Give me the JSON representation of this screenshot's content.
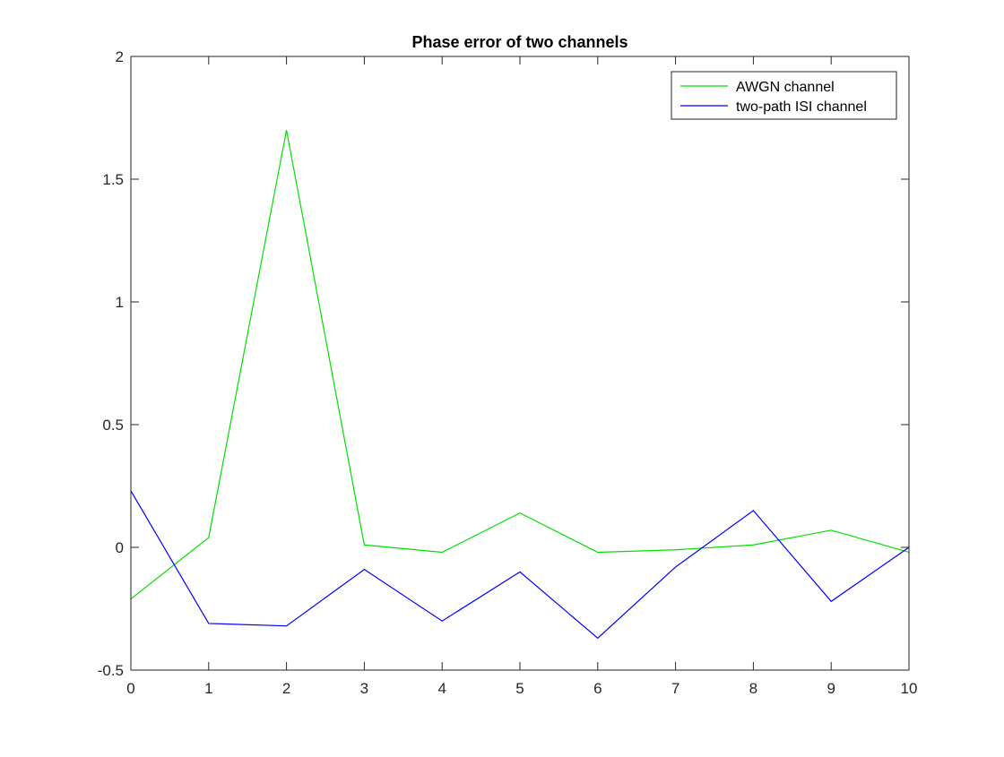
{
  "chart_data": {
    "type": "line",
    "title": "Phase error of two channels",
    "xlabel": "",
    "ylabel": "",
    "xlim": [
      0,
      10
    ],
    "ylim": [
      -0.5,
      2
    ],
    "xticks": [
      0,
      1,
      2,
      3,
      4,
      5,
      6,
      7,
      8,
      9,
      10
    ],
    "yticks": [
      -0.5,
      0,
      0.5,
      1,
      1.5,
      2
    ],
    "xtick_labels": [
      "0",
      "1",
      "2",
      "3",
      "4",
      "5",
      "6",
      "7",
      "8",
      "9",
      "10"
    ],
    "ytick_labels": [
      "-0.5",
      "0",
      "0.5",
      "1",
      "1.5",
      "2"
    ],
    "grid": false,
    "legend_position": "top-right",
    "x": [
      0,
      1,
      2,
      3,
      4,
      5,
      6,
      7,
      8,
      9,
      10
    ],
    "series": [
      {
        "name": "AWGN channel",
        "color": "#00e000",
        "values": [
          -0.21,
          0.04,
          1.7,
          0.01,
          -0.02,
          0.14,
          -0.02,
          -0.01,
          0.01,
          0.07,
          -0.02
        ]
      },
      {
        "name": "two-path ISI channel",
        "color": "#0000ff",
        "values": [
          0.23,
          -0.31,
          -0.32,
          -0.09,
          -0.3,
          -0.1,
          -0.37,
          -0.08,
          0.15,
          -0.22,
          0.0
        ]
      }
    ]
  }
}
